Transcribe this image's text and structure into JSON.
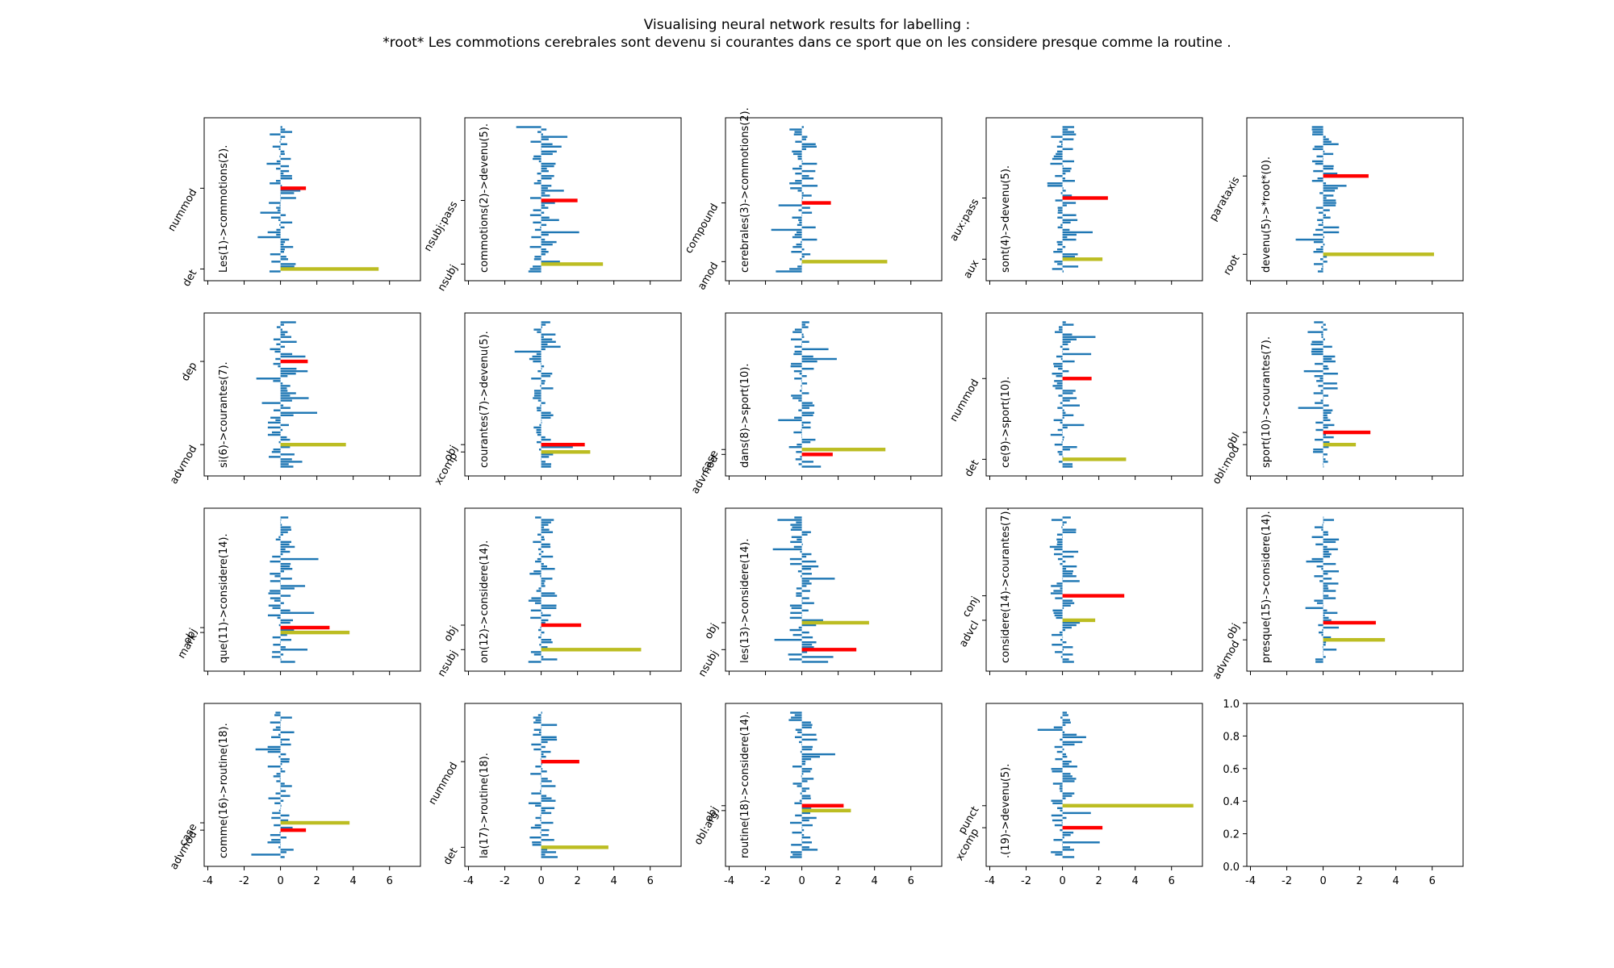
{
  "chart_data": {
    "type": "bar",
    "title": "Visualising neural network results for labelling :",
    "subtitle": "*root* Les commotions cerebrales sont devenu si courantes dans ce sport que on les considere presque comme la routine .",
    "layout": "grid 4 rows x 5 columns, horizontal bars, shared x axis",
    "x_ticks": [
      -4,
      -2,
      0,
      2,
      4,
      6
    ],
    "xlim": [
      -4.2,
      7.7
    ],
    "colors": {
      "bars": "#1f77b4",
      "gold": "#bcbd22",
      "predicted": "#ff0000"
    },
    "bar_rows": 60,
    "subplots": [
      {
        "label": "Les(1)->commotions(2).",
        "yticks": [
          "nummod",
          "det"
        ],
        "gold": 5.4,
        "gold_row": 58,
        "pred": 1.4,
        "pred_row": 25,
        "seed": 11
      },
      {
        "label": "commotions(2)->devenu(5).",
        "yticks": [
          "nsubj:pass",
          "nsubj"
        ],
        "gold": 3.4,
        "gold_row": 56,
        "pred": 2.0,
        "pred_row": 30,
        "seed": 23
      },
      {
        "label": "cerebrales(3)->commotions(2).",
        "yticks": [
          "compound",
          "amod"
        ],
        "gold": 4.7,
        "gold_row": 55,
        "pred": 1.6,
        "pred_row": 31,
        "seed": 37
      },
      {
        "label": "sont(4)->devenu(5).",
        "yticks": [
          "aux:pass",
          "aux"
        ],
        "gold": 2.2,
        "gold_row": 54,
        "pred": 2.5,
        "pred_row": 29,
        "seed": 41
      },
      {
        "label": "devenu(5)->*root*(0).",
        "yticks": [
          "parataxis",
          "root"
        ],
        "gold": 6.1,
        "gold_row": 52,
        "pred": 2.5,
        "pred_row": 20,
        "seed": 53
      },
      {
        "label": "si(6)->courantes(7).",
        "yticks": [
          "dep",
          "advmod"
        ],
        "gold": 3.6,
        "gold_row": 50,
        "pred": 1.5,
        "pred_row": 16,
        "seed": 67
      },
      {
        "label": "courantes(7)->devenu(5).",
        "yticks": [
          "obj",
          "xcomp"
        ],
        "gold": 2.7,
        "gold_row": 53,
        "pred": 2.4,
        "pred_row": 50,
        "seed": 71
      },
      {
        "label": "dans(8)->sport(10).",
        "yticks": [
          "case",
          "advmod"
        ],
        "gold": 4.6,
        "gold_row": 52,
        "pred": 1.7,
        "pred_row": 54,
        "seed": 83
      },
      {
        "label": "ce(9)->sport(10).",
        "yticks": [
          "nummod",
          "det"
        ],
        "gold": 3.5,
        "gold_row": 56,
        "pred": 1.6,
        "pred_row": 23,
        "seed": 97
      },
      {
        "label": "sport(10)->courantes(7).",
        "yticks": [
          "obl",
          "obl:mod"
        ],
        "gold": 1.8,
        "gold_row": 50,
        "pred": 2.6,
        "pred_row": 45,
        "seed": 101
      },
      {
        "label": "que(11)->considere(14).",
        "yticks": [
          "obj",
          "mark"
        ],
        "gold": 3.8,
        "gold_row": 47,
        "pred": 2.7,
        "pred_row": 45,
        "seed": 113
      },
      {
        "label": "on(12)->considere(14).",
        "yticks": [
          "obj",
          "nsubj"
        ],
        "gold": 5.5,
        "gold_row": 54,
        "pred": 2.2,
        "pred_row": 44,
        "seed": 127
      },
      {
        "label": "les(13)->considere(14).",
        "yticks": [
          "obj",
          "nsubj"
        ],
        "gold": 3.7,
        "gold_row": 43,
        "pred": 3.0,
        "pred_row": 54,
        "seed": 131
      },
      {
        "label": "considere(14)->courantes(7).",
        "yticks": [
          "conj",
          "advcl"
        ],
        "gold": 1.8,
        "gold_row": 42,
        "pred": 3.4,
        "pred_row": 32,
        "seed": 137
      },
      {
        "label": "presque(15)->considere(14).",
        "yticks": [
          "obj",
          "advmod"
        ],
        "gold": 3.4,
        "gold_row": 50,
        "pred": 2.9,
        "pred_row": 43,
        "seed": 149
      },
      {
        "label": "comme(16)->routine(18).",
        "yticks": [
          "case",
          "advmod"
        ],
        "gold": 3.8,
        "gold_row": 45,
        "pred": 1.4,
        "pred_row": 48,
        "seed": 151
      },
      {
        "label": "la(17)->routine(18).",
        "yticks": [
          "nummod",
          "det"
        ],
        "gold": 3.7,
        "gold_row": 55,
        "pred": 2.1,
        "pred_row": 20,
        "seed": 163
      },
      {
        "label": "routine(18)->considere(14).",
        "yticks": [
          "obj",
          "obl:arg"
        ],
        "gold": 2.7,
        "gold_row": 40,
        "pred": 2.3,
        "pred_row": 38,
        "seed": 173
      },
      {
        "label": ".(19)->devenu(5).",
        "yticks": [
          "punct",
          "xcomp"
        ],
        "gold": 7.2,
        "gold_row": 38,
        "pred": 2.2,
        "pred_row": 47,
        "seed": 179
      }
    ],
    "empty_axes": {
      "yticks": [
        "0.0",
        "0.2",
        "0.4",
        "0.6",
        "0.8",
        "1.0"
      ],
      "ylim": [
        0,
        1
      ]
    }
  }
}
